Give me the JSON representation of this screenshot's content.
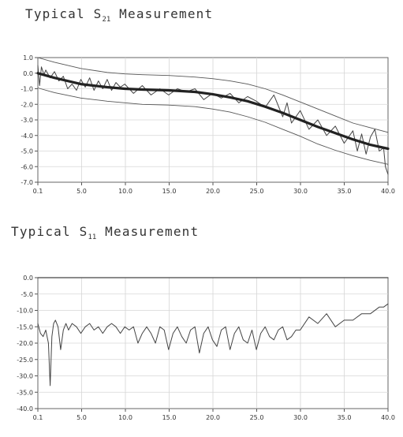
{
  "chart_data": [
    {
      "type": "line",
      "title": "Typical S",
      "title_sub": "21",
      "title_tail": " Measurement",
      "xlim": [
        0.1,
        40.0
      ],
      "ylim": [
        -7.0,
        1.0
      ],
      "x_ticks": [
        "0.1",
        "5.0",
        "10.0",
        "15.0",
        "20.0",
        "25.0",
        "30.0",
        "35.0",
        "40.0"
      ],
      "y_ticks": [
        "1.0",
        "0.0",
        "-1.0",
        "-2.0",
        "-3.0",
        "-4.0",
        "-5.0",
        "-6.0",
        "-7.0"
      ],
      "grid": true,
      "series": [
        {
          "role": "measured",
          "x": [
            0.1,
            0.3,
            0.5,
            0.8,
            1.0,
            1.2,
            1.5,
            2.0,
            2.5,
            3.0,
            3.5,
            4.0,
            4.5,
            5.0,
            5.5,
            6.0,
            6.5,
            7.0,
            7.5,
            8.0,
            8.5,
            9.0,
            9.5,
            10.0,
            11.0,
            12.0,
            13.0,
            14.0,
            15.0,
            16.0,
            17.0,
            18.0,
            19.0,
            20.0,
            21.0,
            22.0,
            23.0,
            24.0,
            25.0,
            26.0,
            27.0,
            28.0,
            28.5,
            29.0,
            30.0,
            31.0,
            32.0,
            33.0,
            34.0,
            35.0,
            36.0,
            36.5,
            37.0,
            37.5,
            38.0,
            38.5,
            39.0,
            39.5,
            39.7,
            40.0
          ],
          "y": [
            0.5,
            -0.8,
            0.4,
            -0.1,
            0.2,
            0.0,
            -0.3,
            0.1,
            -0.5,
            -0.2,
            -1.0,
            -0.7,
            -1.1,
            -0.4,
            -0.9,
            -0.3,
            -1.1,
            -0.5,
            -1.0,
            -0.4,
            -1.1,
            -0.6,
            -0.9,
            -0.7,
            -1.3,
            -0.8,
            -1.4,
            -1.0,
            -1.4,
            -1.0,
            -1.2,
            -1.0,
            -1.7,
            -1.3,
            -1.6,
            -1.3,
            -1.9,
            -1.5,
            -1.8,
            -2.2,
            -1.4,
            -2.8,
            -1.9,
            -3.2,
            -2.4,
            -3.6,
            -3.0,
            -4.0,
            -3.4,
            -4.5,
            -3.7,
            -5.0,
            -3.9,
            -5.2,
            -4.1,
            -3.6,
            -5.0,
            -4.8,
            -6.0,
            -6.5
          ]
        },
        {
          "role": "typical",
          "x": [
            0.1,
            2,
            5,
            8,
            10,
            12,
            15,
            18,
            20,
            22,
            24,
            26,
            28,
            30,
            32,
            34,
            36,
            38,
            40
          ],
          "y": [
            0.0,
            -0.3,
            -0.7,
            -0.9,
            -1.0,
            -1.05,
            -1.1,
            -1.2,
            -1.35,
            -1.55,
            -1.8,
            -2.15,
            -2.55,
            -3.0,
            -3.45,
            -3.85,
            -4.25,
            -4.6,
            -4.85
          ]
        },
        {
          "role": "upper-limit",
          "x": [
            0.1,
            2,
            5,
            8,
            10,
            12,
            15,
            18,
            20,
            22,
            24,
            26,
            28,
            30,
            32,
            34,
            36,
            38,
            40
          ],
          "y": [
            1.0,
            0.7,
            0.3,
            0.05,
            -0.05,
            -0.1,
            -0.15,
            -0.25,
            -0.35,
            -0.5,
            -0.7,
            -1.0,
            -1.4,
            -1.85,
            -2.3,
            -2.75,
            -3.2,
            -3.5,
            -3.8
          ]
        },
        {
          "role": "lower-limit",
          "x": [
            0.1,
            2,
            5,
            8,
            10,
            12,
            15,
            18,
            20,
            22,
            24,
            26,
            28,
            30,
            32,
            34,
            36,
            38,
            40
          ],
          "y": [
            -0.95,
            -1.25,
            -1.6,
            -1.8,
            -1.9,
            -2.0,
            -2.05,
            -2.15,
            -2.3,
            -2.5,
            -2.8,
            -3.15,
            -3.6,
            -4.05,
            -4.55,
            -4.95,
            -5.3,
            -5.6,
            -5.85
          ]
        }
      ]
    },
    {
      "type": "line",
      "title": "Typical S",
      "title_sub": "11",
      "title_tail": " Measurement",
      "xlim": [
        0.1,
        40.0
      ],
      "ylim": [
        -40.0,
        0.0
      ],
      "x_ticks": [
        "0.1",
        "5.0",
        "10.0",
        "15.0",
        "20.0",
        "25.0",
        "30.0",
        "35.0",
        "40.0"
      ],
      "y_ticks": [
        "0.0",
        "-5.0",
        "-10.0",
        "-15.0",
        "-20.0",
        "-25.0",
        "-30.0",
        "-35.0",
        "-40.0"
      ],
      "grid": true,
      "series": [
        {
          "role": "measured",
          "x": [
            0.1,
            0.4,
            0.7,
            1.0,
            1.3,
            1.5,
            1.7,
            1.9,
            2.1,
            2.4,
            2.7,
            3.0,
            3.3,
            3.6,
            4.0,
            4.5,
            5.0,
            5.5,
            6.0,
            6.5,
            7.0,
            7.5,
            8.0,
            8.5,
            9.0,
            9.5,
            10.0,
            10.5,
            11.0,
            11.5,
            12.0,
            12.5,
            13.0,
            13.5,
            14.0,
            14.5,
            15.0,
            15.5,
            16.0,
            16.5,
            17.0,
            17.5,
            18.0,
            18.5,
            19.0,
            19.5,
            20.0,
            20.5,
            21.0,
            21.5,
            22.0,
            22.5,
            23.0,
            23.5,
            24.0,
            24.5,
            25.0,
            25.5,
            26.0,
            26.5,
            27.0,
            27.5,
            28.0,
            28.5,
            29.0,
            29.5,
            30.0,
            31.0,
            32.0,
            33.0,
            34.0,
            35.0,
            36.0,
            37.0,
            38.0,
            39.0,
            39.5,
            40.0
          ],
          "y": [
            -14,
            -17,
            -18,
            -16,
            -20,
            -33,
            -18,
            -14,
            -13,
            -15,
            -22,
            -16,
            -14,
            -16,
            -14,
            -15,
            -17,
            -15,
            -14,
            -16,
            -15,
            -17,
            -15,
            -14,
            -15,
            -17,
            -15,
            -16,
            -15,
            -20,
            -17,
            -15,
            -17,
            -20,
            -15,
            -16,
            -22,
            -17,
            -15,
            -18,
            -20,
            -16,
            -15,
            -23,
            -17,
            -15,
            -19,
            -21,
            -16,
            -15,
            -22,
            -17,
            -15,
            -19,
            -20,
            -16,
            -22,
            -17,
            -15,
            -18,
            -19,
            -16,
            -15,
            -19,
            -18,
            -16,
            -16,
            -12,
            -14,
            -11,
            -15,
            -13,
            -13,
            -11,
            -11,
            -9,
            -9,
            -8
          ]
        },
        {
          "role": "limit",
          "x": [
            0.1,
            40.0
          ],
          "y": [
            0.0,
            0.0
          ]
        }
      ]
    }
  ]
}
